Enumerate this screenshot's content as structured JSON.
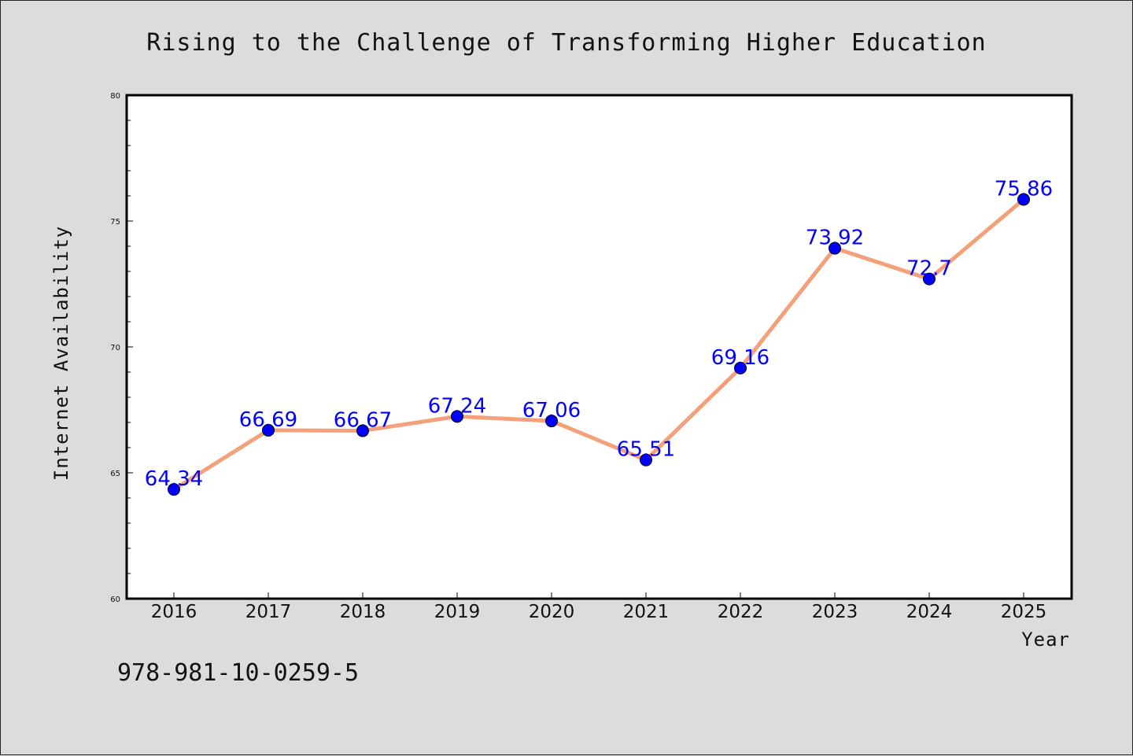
{
  "chart_data": {
    "type": "line",
    "title": "Rising to the Challenge of Transforming Higher Education",
    "xlabel": "Year",
    "ylabel": "Internet Availability",
    "categories": [
      "2016",
      "2017",
      "2018",
      "2019",
      "2020",
      "2021",
      "2022",
      "2023",
      "2024",
      "2025"
    ],
    "series": [
      {
        "values": [
          64.34,
          66.69,
          66.67,
          67.24,
          67.06,
          65.51,
          69.16,
          73.92,
          72.7,
          75.86
        ],
        "labels": [
          "64.34",
          "66.69",
          "66.67",
          "67.24",
          "67.06",
          "65.51",
          "69.16",
          "73.92",
          "72.7",
          "75.86"
        ],
        "line_color": "#f4a07a",
        "marker_color": "#0000ff"
      }
    ],
    "ylim": [
      60,
      80
    ],
    "yticks": [
      "60",
      "65",
      "70",
      "75",
      "80"
    ],
    "grid": false,
    "legend": "none"
  },
  "footnote": "978-981-10-0259-5",
  "colors": {
    "background": "#dcdcdc",
    "plot_background": "#ffffff",
    "line": "#f4a07a",
    "marker": "#0000ff",
    "data_label": "#0000ff"
  }
}
